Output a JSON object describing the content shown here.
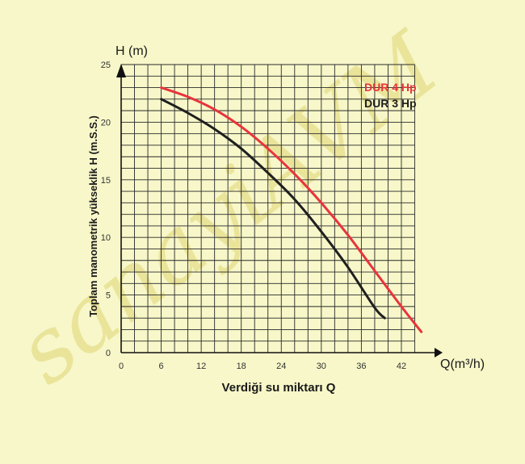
{
  "chart_data": {
    "type": "line",
    "xlabel": "Verdiği su miktarı Q",
    "ylabel": "Toplam manometrik yükseklik H (m.S.S.)",
    "x_axis_unit": "Q(m³/h)",
    "y_axis_unit": "H (m)",
    "xlim": [
      0,
      46
    ],
    "ylim": [
      0,
      25
    ],
    "x_ticks": [
      0,
      6,
      12,
      18,
      24,
      30,
      36,
      42
    ],
    "y_ticks": [
      0,
      5,
      10,
      15,
      20,
      25
    ],
    "grid": true,
    "legend_position": "top-right",
    "series": [
      {
        "name": "DUR 4 Hp",
        "color": "#e8343c",
        "points": [
          [
            6,
            23
          ],
          [
            10,
            22.2
          ],
          [
            14,
            21.1
          ],
          [
            18,
            19.6
          ],
          [
            22,
            17.7
          ],
          [
            26,
            15.5
          ],
          [
            30,
            13
          ],
          [
            34,
            10.2
          ],
          [
            38,
            7.1
          ],
          [
            42,
            4
          ],
          [
            45,
            1.8
          ]
        ]
      },
      {
        "name": "DUR 3 Hp",
        "color": "#1f1f1f",
        "points": [
          [
            6,
            22
          ],
          [
            10,
            20.8
          ],
          [
            14,
            19.4
          ],
          [
            18,
            17.7
          ],
          [
            22,
            15.6
          ],
          [
            26,
            13.3
          ],
          [
            30,
            10.5
          ],
          [
            34,
            7.4
          ],
          [
            38,
            3.9
          ],
          [
            39.5,
            3
          ]
        ]
      }
    ]
  },
  "watermark": {
    "text": "sanayiAVM",
    "color": "#e5dd8a"
  }
}
